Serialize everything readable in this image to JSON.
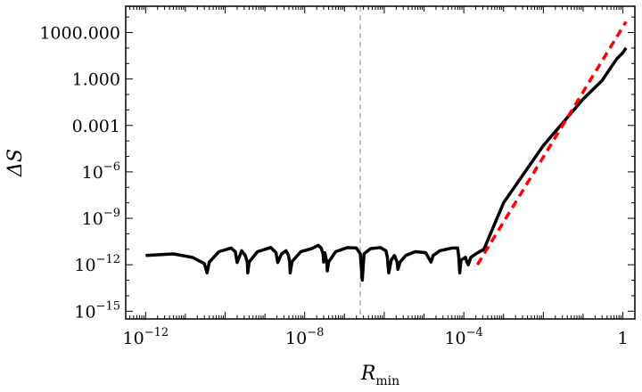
{
  "chart_data": {
    "type": "line",
    "title": "",
    "xlabel": "R",
    "xlabel_subscript": "min",
    "ylabel": "ΔS",
    "x_scale": "log",
    "y_scale": "log",
    "xlim": [
      3.16e-13,
      2.0
    ],
    "ylim": [
      3.16e-16,
      50000
    ],
    "x_ticks": [
      {
        "value": 1e-12,
        "base": "10",
        "exp": "−12"
      },
      {
        "value": 1e-08,
        "base": "10",
        "exp": "−8"
      },
      {
        "value": 0.0001,
        "base": "10",
        "exp": "−4"
      },
      {
        "value": 1,
        "base": "1",
        "exp": ""
      }
    ],
    "y_ticks": [
      {
        "value": 1e-15,
        "base": "10",
        "exp": "−15"
      },
      {
        "value": 1e-12,
        "base": "10",
        "exp": "−12"
      },
      {
        "value": 1e-09,
        "base": "10",
        "exp": "−9"
      },
      {
        "value": 1e-06,
        "base": "10",
        "exp": "−6"
      },
      {
        "value": 0.001,
        "base": "0.001",
        "exp": ""
      },
      {
        "value": 1,
        "base": "1.000",
        "exp": ""
      },
      {
        "value": 1000,
        "base": "1000.000",
        "exp": ""
      }
    ],
    "vertical_reference_line": {
      "x": 2.5e-07,
      "style": "dashed",
      "color": "#888888"
    },
    "series": [
      {
        "style": "solid",
        "color": "#000000",
        "points": [
          [
            1e-12,
            4e-12
          ],
          [
            5e-12,
            5e-12
          ],
          [
            1.5e-11,
            3e-12
          ],
          [
            3e-11,
            1.2e-12
          ],
          [
            3.5e-11,
            3e-13
          ],
          [
            4e-11,
            1.5e-12
          ],
          [
            7e-11,
            7e-12
          ],
          [
            1.4e-10,
            1.2e-11
          ],
          [
            1.8e-10,
            7e-12
          ],
          [
            2e-10,
            1.4e-12
          ],
          [
            2.6e-10,
            8e-12
          ],
          [
            3.2e-10,
            4e-12
          ],
          [
            3.6e-10,
            1.5e-12
          ],
          [
            3.7e-10,
            3e-13
          ],
          [
            4e-10,
            1.5e-12
          ],
          [
            6.5e-10,
            7e-12
          ],
          [
            1.4e-09,
            1.3e-11
          ],
          [
            1.9e-09,
            6e-12
          ],
          [
            2.1e-09,
            1.4e-12
          ],
          [
            2.6e-09,
            5e-12
          ],
          [
            3.4e-09,
            8e-12
          ],
          [
            3.9e-09,
            4e-12
          ],
          [
            4.2e-09,
            1.5e-12
          ],
          [
            4.3e-09,
            3e-13
          ],
          [
            4.8e-09,
            1.6e-12
          ],
          [
            8e-09,
            7e-12
          ],
          [
            1.5e-08,
            1.1e-11
          ],
          [
            2.2e-08,
            1.8e-11
          ],
          [
            2.6e-08,
            1.2e-11
          ],
          [
            2.9e-08,
            5e-12
          ],
          [
            3e-08,
            1.5e-12
          ],
          [
            3.2e-08,
            6e-12
          ],
          [
            3.6e-08,
            1.5e-12
          ],
          [
            3.7e-08,
            4e-13
          ],
          [
            4e-08,
            1.5e-12
          ],
          [
            6e-08,
            7e-12
          ],
          [
            1.2e-07,
            1.3e-11
          ],
          [
            2e-07,
            1.2e-11
          ],
          [
            2.5e-07,
            5e-12
          ],
          [
            2.8e-07,
            1e-13
          ],
          [
            3.1e-07,
            5e-12
          ],
          [
            4.5e-07,
            1.1e-11
          ],
          [
            8e-07,
            1.3e-11
          ],
          [
            1.1e-06,
            8e-12
          ],
          [
            1.2e-06,
            3e-12
          ],
          [
            1.25e-06,
            8e-13
          ],
          [
            1.3e-06,
            3e-13
          ],
          [
            1.5e-06,
            2e-12
          ],
          [
            1.8e-06,
            4e-12
          ],
          [
            2.1e-06,
            1.5e-12
          ],
          [
            2.2e-06,
            5e-13
          ],
          [
            2.5e-06,
            1.5e-12
          ],
          [
            3.5e-06,
            4e-12
          ],
          [
            6e-06,
            7e-12
          ],
          [
            1.1e-05,
            6e-12
          ],
          [
            1.4e-05,
            2e-12
          ],
          [
            1.5e-05,
            1.5e-12
          ],
          [
            1.7e-05,
            4e-12
          ],
          [
            2.5e-05,
            8e-12
          ],
          [
            5e-05,
            1.2e-11
          ],
          [
            7e-05,
            1.2e-11
          ],
          [
            7.5e-05,
            3e-12
          ],
          [
            7.9e-05,
            3e-13
          ],
          [
            8.5e-05,
            2e-12
          ],
          [
            0.00011,
            3e-12
          ],
          [
            0.00012,
            1.5e-12
          ],
          [
            0.00013,
            1e-12
          ],
          [
            0.00015,
            3e-12
          ],
          [
            0.0002,
            5e-12
          ],
          [
            0.00025,
            7e-12
          ],
          [
            0.00032,
            1e-11
          ],
          [
            0.001,
            1e-08
          ],
          [
            0.01,
            5e-05
          ],
          [
            0.1,
            0.05
          ],
          [
            0.3,
            0.8
          ],
          [
            0.7,
            20
          ],
          [
            1.0,
            50
          ],
          [
            1.2,
            100
          ]
        ]
      },
      {
        "style": "dashed",
        "color": "#ff0000",
        "points": [
          [
            0.00022,
            1e-12
          ],
          [
            1.2,
            5000
          ]
        ]
      }
    ],
    "grid": false
  }
}
